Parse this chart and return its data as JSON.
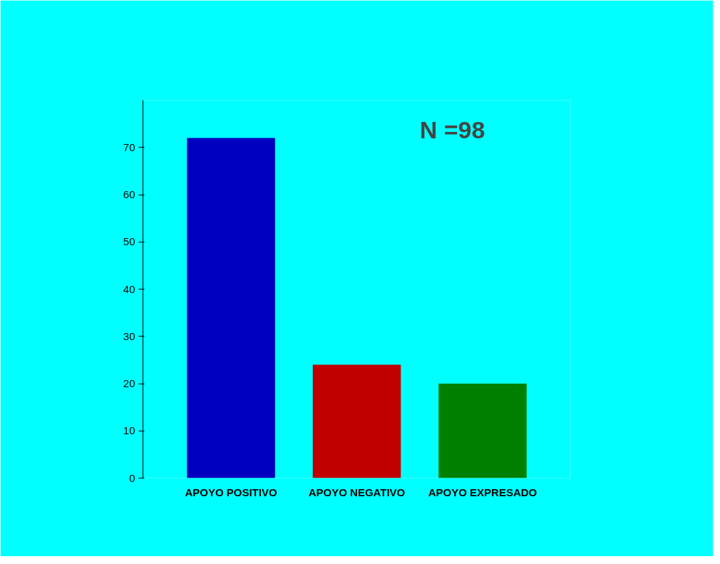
{
  "chart_data": {
    "type": "bar",
    "categories": [
      "APOYO POSITIVO",
      "APOYO NEGATIVO",
      "APOYO EXPRESADO"
    ],
    "values": [
      72,
      24,
      20
    ],
    "colors": [
      "#0000c0",
      "#c00000",
      "#008000"
    ],
    "ylim": [
      0,
      80
    ],
    "yticks": [
      0,
      10,
      20,
      30,
      40,
      50,
      60,
      70
    ],
    "grid": false,
    "annotations": [
      "N =98"
    ]
  }
}
